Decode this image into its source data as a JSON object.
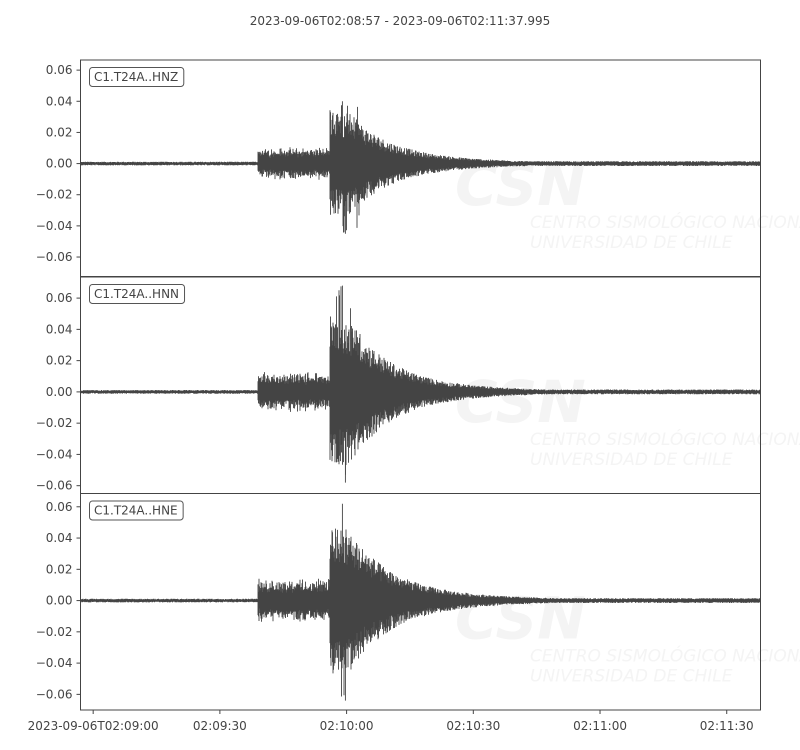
{
  "chart_data": {
    "type": "line",
    "title": "2023-09-06T02:08:57  -  2023-09-06T02:11:37.995",
    "x_axis": {
      "type": "time",
      "range": [
        "2023-09-06T02:08:57",
        "2023-09-06T02:11:37.995"
      ],
      "tick_labels": [
        "2023-09-06T02:09:00",
        "02:09:30",
        "02:10:00",
        "02:10:30",
        "02:11:00",
        "02:11:30"
      ],
      "tick_seconds_from_start": [
        3,
        33,
        63,
        93,
        123,
        153
      ]
    },
    "grid": false,
    "line_color": "#444444",
    "series": [
      {
        "name": "C1.T24A..HNZ",
        "ylim": [
          -0.0725,
          0.0665
        ],
        "y_tick_labels": [
          "0.06",
          "0.04",
          "0.02",
          "0.00",
          "−0.02",
          "−0.04",
          "−0.06"
        ],
        "y_ticks": [
          0.06,
          0.04,
          0.02,
          0.0,
          -0.02,
          -0.04,
          -0.06
        ],
        "noise_amplitude": 0.0012,
        "p_arrival": "02:09:39",
        "p_amplitude": 0.009,
        "s_arrival": "02:09:54",
        "peak_max": 0.04,
        "peak_min": -0.045
      },
      {
        "name": "C1.T24A..HNN",
        "ylim": [
          -0.065,
          0.0735
        ],
        "y_tick_labels": [
          "0.06",
          "0.04",
          "0.02",
          "0.00",
          "−0.02",
          "−0.04",
          "−0.06"
        ],
        "y_ticks": [
          0.06,
          0.04,
          0.02,
          0.0,
          -0.02,
          -0.04,
          -0.06
        ],
        "noise_amplitude": 0.0012,
        "p_arrival": "02:09:39",
        "p_amplitude": 0.011,
        "s_arrival": "02:09:54",
        "peak_max": 0.068,
        "peak_min": -0.058
      },
      {
        "name": "C1.T24A..HNE",
        "ylim": [
          -0.07,
          0.0685
        ],
        "y_tick_labels": [
          "0.06",
          "0.04",
          "0.02",
          "0.00",
          "−0.02",
          "−0.04",
          "−0.06"
        ],
        "y_ticks": [
          0.06,
          0.04,
          0.02,
          0.0,
          -0.02,
          -0.04,
          -0.06
        ],
        "noise_amplitude": 0.0012,
        "p_arrival": "02:09:39",
        "p_amplitude": 0.012,
        "s_arrival": "02:09:54",
        "peak_max": 0.062,
        "peak_min": -0.064
      }
    ]
  },
  "watermark": {
    "logo": "CSN",
    "line1": "CENTRO SISMOLÓGICO NACIONAL",
    "line2": "UNIVERSIDAD DE CHILE"
  }
}
